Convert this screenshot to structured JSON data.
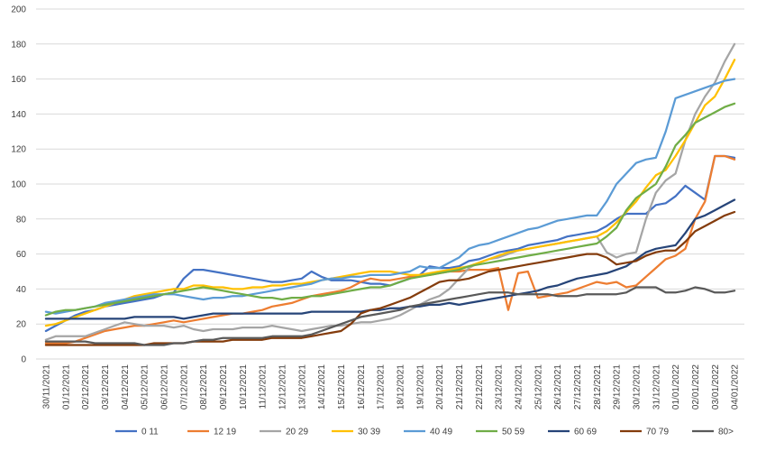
{
  "chart_data": {
    "type": "line",
    "title": "",
    "xlabel": "",
    "ylabel": "",
    "ylim": [
      0,
      200
    ],
    "yticks": [
      0,
      20,
      40,
      60,
      80,
      100,
      120,
      140,
      160,
      180,
      200
    ],
    "grid": "horizontal",
    "legend": "bottom",
    "categories": [
      "30/11/2021",
      "01/12/2021",
      "02/12/2021",
      "03/12/2021",
      "04/12/2021",
      "05/12/2021",
      "06/12/2021",
      "07/12/2021",
      "08/12/2021",
      "09/12/2021",
      "10/12/2021",
      "11/12/2021",
      "12/12/2021",
      "13/12/2021",
      "14/12/2021",
      "15/12/2021",
      "16/12/2021",
      "17/12/2021",
      "18/12/2021",
      "19/12/2021",
      "20/12/2021",
      "21/12/2021",
      "22/12/2021",
      "23/12/2021",
      "24/12/2021",
      "25/12/2021",
      "26/12/2021",
      "27/12/2021",
      "28/12/2021",
      "29/12/2021",
      "30/12/2021",
      "31/12/2021",
      "01/01/2022",
      "02/01/2022",
      "03/01/2022",
      "04/01/2022"
    ],
    "x": [
      0,
      0.5,
      1,
      1.5,
      2,
      2.5,
      3,
      3.5,
      4,
      4.5,
      5,
      5.5,
      6,
      6.5,
      7,
      7.5,
      8,
      8.5,
      9,
      9.5,
      10,
      10.5,
      11,
      11.5,
      12,
      12.5,
      13,
      13.5,
      14,
      14.5,
      15,
      15.5,
      16,
      16.5,
      17,
      17.5,
      18,
      18.5,
      19,
      19.5,
      20,
      20.5,
      21,
      21.5,
      22,
      22.5,
      23,
      23.5,
      24,
      24.5,
      25,
      25.5,
      26,
      26.5,
      27,
      27.5,
      28,
      28.5,
      29,
      29.5,
      30,
      30.5,
      31,
      31.5,
      32,
      32.5,
      33,
      33.5,
      34,
      34.5,
      35
    ],
    "series": [
      {
        "name": "0 11",
        "color": "#4472c4",
        "values": [
          16,
          19,
          22,
          25,
          27,
          28,
          30,
          31,
          32,
          33,
          34,
          35,
          37,
          38,
          46,
          51,
          51,
          50,
          49,
          48,
          47,
          46,
          45,
          44,
          44,
          45,
          46,
          50,
          47,
          45,
          45,
          45,
          44,
          43,
          43,
          42,
          44,
          46,
          48,
          53,
          52,
          52,
          53,
          56,
          57,
          59,
          61,
          62,
          63,
          65,
          66,
          67,
          68,
          70,
          71,
          72,
          73,
          76,
          80,
          83,
          83,
          83,
          88,
          89,
          93,
          99,
          95,
          91,
          116,
          116,
          115
        ]
      },
      {
        "name": "12 19",
        "color": "#ed7d31",
        "values": [
          9,
          9,
          9,
          10,
          12,
          14,
          16,
          17,
          18,
          19,
          19,
          20,
          21,
          22,
          21,
          22,
          23,
          24,
          25,
          26,
          26,
          27,
          28,
          30,
          31,
          32,
          34,
          36,
          37,
          38,
          39,
          41,
          44,
          46,
          45,
          45,
          46,
          47,
          48,
          48,
          49,
          50,
          50,
          51,
          51,
          51,
          52,
          28,
          49,
          50,
          35,
          36,
          37,
          38,
          40,
          42,
          44,
          43,
          44,
          41,
          42,
          47,
          52,
          57,
          59,
          63,
          80,
          90,
          116,
          116,
          114
        ]
      },
      {
        "name": "20 29",
        "color": "#a5a5a5",
        "values": [
          11,
          13,
          13,
          13,
          13,
          15,
          17,
          19,
          21,
          20,
          19,
          19,
          19,
          18,
          19,
          17,
          16,
          17,
          17,
          17,
          18,
          18,
          18,
          19,
          18,
          17,
          16,
          17,
          18,
          19,
          19,
          20,
          21,
          21,
          22,
          23,
          25,
          28,
          31,
          34,
          36,
          40,
          46,
          52,
          55,
          57,
          58,
          60,
          62,
          63,
          64,
          65,
          66,
          67,
          68,
          69,
          70,
          61,
          58,
          60,
          61,
          80,
          95,
          102,
          106,
          125,
          140,
          150,
          158,
          170,
          180
        ]
      },
      {
        "name": "30 39",
        "color": "#ffc000",
        "values": [
          19,
          20,
          22,
          24,
          26,
          28,
          30,
          32,
          34,
          36,
          37,
          38,
          39,
          40,
          40,
          42,
          42,
          41,
          41,
          40,
          40,
          41,
          41,
          42,
          42,
          43,
          43,
          44,
          45,
          46,
          47,
          48,
          49,
          50,
          50,
          50,
          49,
          48,
          48,
          49,
          50,
          51,
          52,
          53,
          55,
          57,
          59,
          61,
          62,
          63,
          64,
          65,
          66,
          67,
          68,
          69,
          70,
          73,
          78,
          84,
          90,
          98,
          105,
          108,
          116,
          125,
          135,
          145,
          150,
          160,
          171
        ]
      },
      {
        "name": "40 49",
        "color": "#5b9bd5",
        "values": [
          27,
          26,
          27,
          28,
          29,
          30,
          32,
          33,
          34,
          35,
          36,
          37,
          37,
          37,
          36,
          35,
          34,
          35,
          35,
          36,
          36,
          37,
          38,
          39,
          40,
          41,
          42,
          43,
          45,
          46,
          46,
          47,
          47,
          48,
          48,
          48,
          49,
          50,
          53,
          52,
          52,
          55,
          58,
          63,
          65,
          66,
          68,
          70,
          72,
          74,
          75,
          77,
          79,
          80,
          81,
          82,
          82,
          90,
          100,
          106,
          112,
          114,
          115,
          130,
          149,
          151,
          153,
          155,
          157,
          159,
          160
        ]
      },
      {
        "name": "50 59",
        "color": "#70ad47",
        "values": [
          25,
          27,
          28,
          28,
          29,
          30,
          31,
          32,
          33,
          34,
          35,
          36,
          37,
          38,
          39,
          40,
          41,
          40,
          39,
          38,
          37,
          36,
          35,
          35,
          34,
          35,
          35,
          36,
          36,
          37,
          38,
          39,
          40,
          41,
          41,
          42,
          44,
          46,
          47,
          48,
          49,
          50,
          51,
          53,
          54,
          55,
          56,
          57,
          58,
          59,
          60,
          61,
          62,
          63,
          64,
          65,
          66,
          70,
          75,
          85,
          92,
          96,
          100,
          110,
          122,
          128,
          135,
          138,
          141,
          144,
          146
        ]
      },
      {
        "name": "60 69",
        "color": "#264478",
        "values": [
          23,
          23,
          23,
          23,
          23,
          23,
          23,
          23,
          23,
          24,
          24,
          24,
          24,
          24,
          23,
          24,
          25,
          26,
          26,
          26,
          26,
          26,
          26,
          26,
          26,
          26,
          26,
          27,
          27,
          27,
          27,
          27,
          27,
          28,
          28,
          29,
          29,
          30,
          30,
          31,
          31,
          32,
          31,
          32,
          33,
          34,
          35,
          36,
          37,
          38,
          39,
          41,
          42,
          44,
          46,
          47,
          48,
          49,
          51,
          53,
          57,
          61,
          63,
          64,
          65,
          72,
          80,
          82,
          85,
          88,
          91
        ]
      },
      {
        "name": "70 79",
        "color": "#843c0c",
        "values": [
          8,
          8,
          8,
          8,
          8,
          8,
          8,
          8,
          8,
          8,
          8,
          9,
          9,
          9,
          9,
          10,
          10,
          10,
          10,
          11,
          11,
          11,
          11,
          12,
          12,
          12,
          12,
          13,
          14,
          15,
          16,
          20,
          26,
          28,
          29,
          31,
          33,
          35,
          38,
          41,
          44,
          45,
          45,
          46,
          48,
          50,
          51,
          52,
          53,
          54,
          55,
          56,
          57,
          58,
          59,
          60,
          60,
          58,
          54,
          55,
          56,
          59,
          61,
          62,
          62,
          67,
          73,
          76,
          79,
          82,
          84
        ]
      },
      {
        "name": "80>",
        "color": "#595959",
        "values": [
          10,
          10,
          10,
          10,
          10,
          9,
          9,
          9,
          9,
          9,
          8,
          8,
          8,
          9,
          9,
          10,
          11,
          11,
          12,
          12,
          12,
          12,
          12,
          13,
          13,
          13,
          13,
          14,
          16,
          18,
          20,
          22,
          24,
          25,
          26,
          27,
          28,
          30,
          31,
          32,
          33,
          34,
          35,
          36,
          37,
          38,
          38,
          38,
          37,
          37,
          37,
          37,
          36,
          36,
          36,
          37,
          37,
          37,
          37,
          38,
          41,
          41,
          41,
          38,
          38,
          39,
          41,
          40,
          38,
          38,
          39
        ]
      }
    ]
  }
}
